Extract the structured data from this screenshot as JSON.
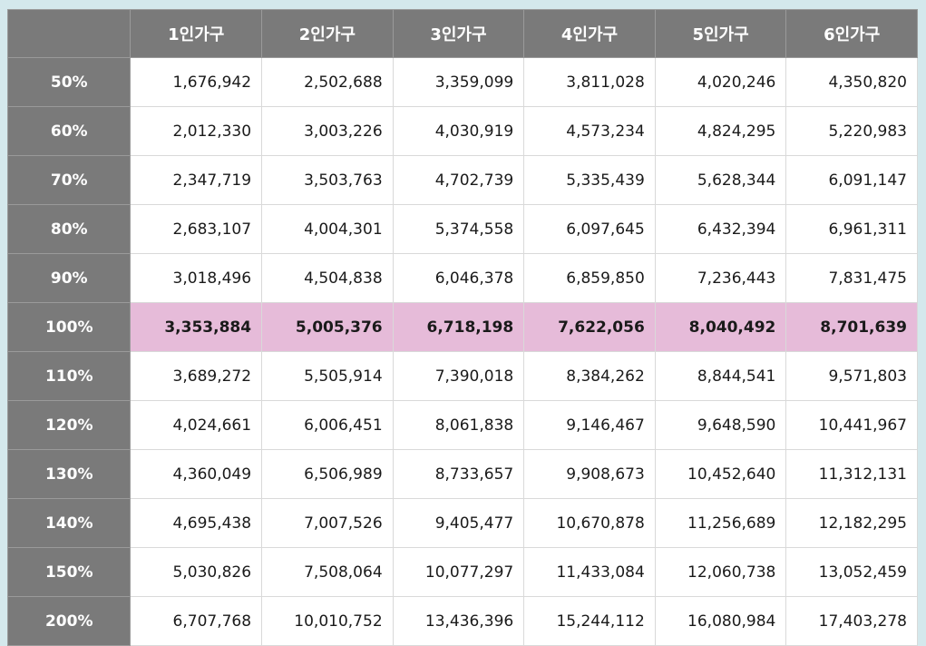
{
  "table": {
    "columns": [
      "1인가구",
      "2인가구",
      "3인가구",
      "4인가구",
      "5인가구",
      "6인가구"
    ],
    "rows": [
      {
        "label": "50%",
        "values": [
          "1,676,942",
          "2,502,688",
          "3,359,099",
          "3,811,028",
          "4,020,246",
          "4,350,820"
        ]
      },
      {
        "label": "60%",
        "values": [
          "2,012,330",
          "3,003,226",
          "4,030,919",
          "4,573,234",
          "4,824,295",
          "5,220,983"
        ]
      },
      {
        "label": "70%",
        "values": [
          "2,347,719",
          "3,503,763",
          "4,702,739",
          "5,335,439",
          "5,628,344",
          "6,091,147"
        ]
      },
      {
        "label": "80%",
        "values": [
          "2,683,107",
          "4,004,301",
          "5,374,558",
          "6,097,645",
          "6,432,394",
          "6,961,311"
        ]
      },
      {
        "label": "90%",
        "values": [
          "3,018,496",
          "4,504,838",
          "6,046,378",
          "6,859,850",
          "7,236,443",
          "7,831,475"
        ]
      },
      {
        "label": "100%",
        "values": [
          "3,353,884",
          "5,005,376",
          "6,718,198",
          "7,622,056",
          "8,040,492",
          "8,701,639"
        ]
      },
      {
        "label": "110%",
        "values": [
          "3,689,272",
          "5,505,914",
          "7,390,018",
          "8,384,262",
          "8,844,541",
          "9,571,803"
        ]
      },
      {
        "label": "120%",
        "values": [
          "4,024,661",
          "6,006,451",
          "8,061,838",
          "9,146,467",
          "9,648,590",
          "10,441,967"
        ]
      },
      {
        "label": "130%",
        "values": [
          "4,360,049",
          "6,506,989",
          "8,733,657",
          "9,908,673",
          "10,452,640",
          "11,312,131"
        ]
      },
      {
        "label": "140%",
        "values": [
          "4,695,438",
          "7,007,526",
          "9,405,477",
          "10,670,878",
          "11,256,689",
          "12,182,295"
        ]
      },
      {
        "label": "150%",
        "values": [
          "5,030,826",
          "7,508,064",
          "10,077,297",
          "11,433,084",
          "12,060,738",
          "13,052,459"
        ]
      },
      {
        "label": "200%",
        "values": [
          "6,707,768",
          "10,010,752",
          "13,436,396",
          "15,244,112",
          "16,080,984",
          "17,403,278"
        ]
      }
    ],
    "highlighted_row": "100%",
    "colors": {
      "header_bg": "#7a7a7a",
      "header_text": "#ffffff",
      "highlight_bg": "#e6bbd9",
      "frame_bg": "#d4e8ec"
    }
  }
}
